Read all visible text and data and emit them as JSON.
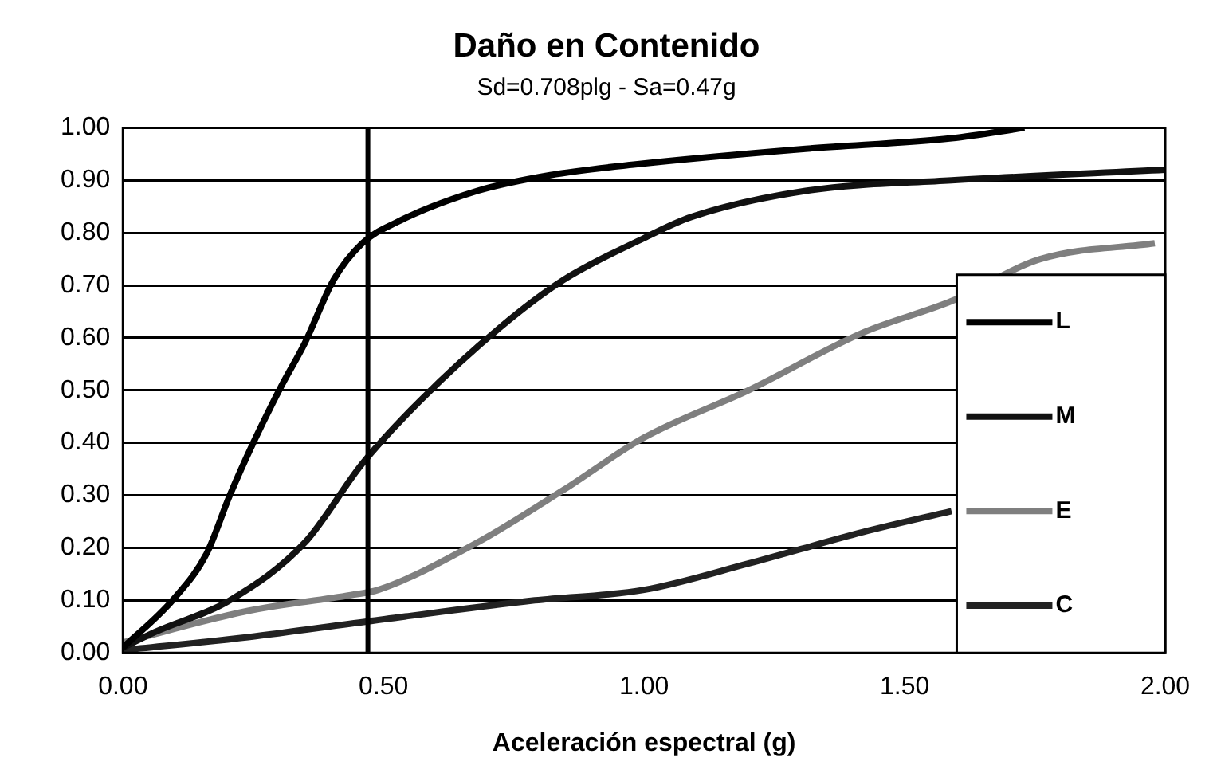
{
  "chart_data": {
    "type": "line",
    "title": "Daño en Contenido",
    "subtitle": "Sd=0.708plg - Sa=0.47g",
    "xlabel": "Aceleración espectral (g)",
    "xlim": [
      0,
      2
    ],
    "xticks": [
      {
        "value": 0,
        "label": "0.00"
      },
      {
        "value": 0.5,
        "label": "0.50"
      },
      {
        "value": 1,
        "label": "1.00"
      },
      {
        "value": 1.5,
        "label": "1.50"
      },
      {
        "value": 2,
        "label": "2.00"
      }
    ],
    "ylim": [
      0,
      1
    ],
    "yticks": [
      {
        "value": 0,
        "label": "0.00"
      },
      {
        "value": 0.1,
        "label": "0.10"
      },
      {
        "value": 0.2,
        "label": "0.20"
      },
      {
        "value": 0.3,
        "label": "0.30"
      },
      {
        "value": 0.4,
        "label": "0.40"
      },
      {
        "value": 0.5,
        "label": "0.50"
      },
      {
        "value": 0.6,
        "label": "0.60"
      },
      {
        "value": 0.7,
        "label": "0.70"
      },
      {
        "value": 0.8,
        "label": "0.80"
      },
      {
        "value": 0.9,
        "label": "0.90"
      },
      {
        "value": 1,
        "label": "1.00"
      }
    ],
    "grid": "y",
    "legend": "bottom right",
    "marker": "none",
    "line_style": "solid",
    "ref_lines": [
      {
        "axis": "x",
        "value": 0.47,
        "color": "#000000"
      }
    ],
    "series": [
      {
        "name": "L",
        "color": "#000000",
        "x": [
          0,
          0.095,
          0.161,
          0.205,
          0.25,
          0.305,
          0.349,
          0.404,
          0.459,
          0.525,
          0.68,
          0.82,
          0.98,
          1.31,
          1.59,
          1.73
        ],
        "values": [
          0.01,
          0.1,
          0.19,
          0.3,
          0.4,
          0.51,
          0.59,
          0.71,
          0.78,
          0.82,
          0.88,
          0.91,
          0.93,
          0.96,
          0.98,
          1.0
        ]
      },
      {
        "name": "M",
        "color": "#111111",
        "x": [
          0,
          0.062,
          0.205,
          0.349,
          0.459,
          0.57,
          0.724,
          0.845,
          1.0,
          1.09,
          1.31,
          1.59,
          2.0
        ],
        "values": [
          0.01,
          0.04,
          0.1,
          0.21,
          0.36,
          0.48,
          0.62,
          0.71,
          0.79,
          0.83,
          0.88,
          0.9,
          0.92
        ]
      },
      {
        "name": "E",
        "color": "#7f7f7f",
        "x": [
          0,
          0.24,
          0.437,
          0.49,
          0.68,
          0.845,
          1.0,
          1.2,
          1.42,
          1.59,
          1.76,
          1.98
        ],
        "values": [
          0.02,
          0.08,
          0.11,
          0.12,
          0.21,
          0.31,
          0.41,
          0.5,
          0.61,
          0.67,
          0.75,
          0.78
        ]
      },
      {
        "name": "C",
        "color": "#222222",
        "x": [
          0,
          0.24,
          0.47,
          0.79,
          1.0,
          1.2,
          1.42,
          1.59
        ],
        "values": [
          0.005,
          0.03,
          0.06,
          0.1,
          0.12,
          0.17,
          0.23,
          0.27
        ]
      }
    ]
  }
}
